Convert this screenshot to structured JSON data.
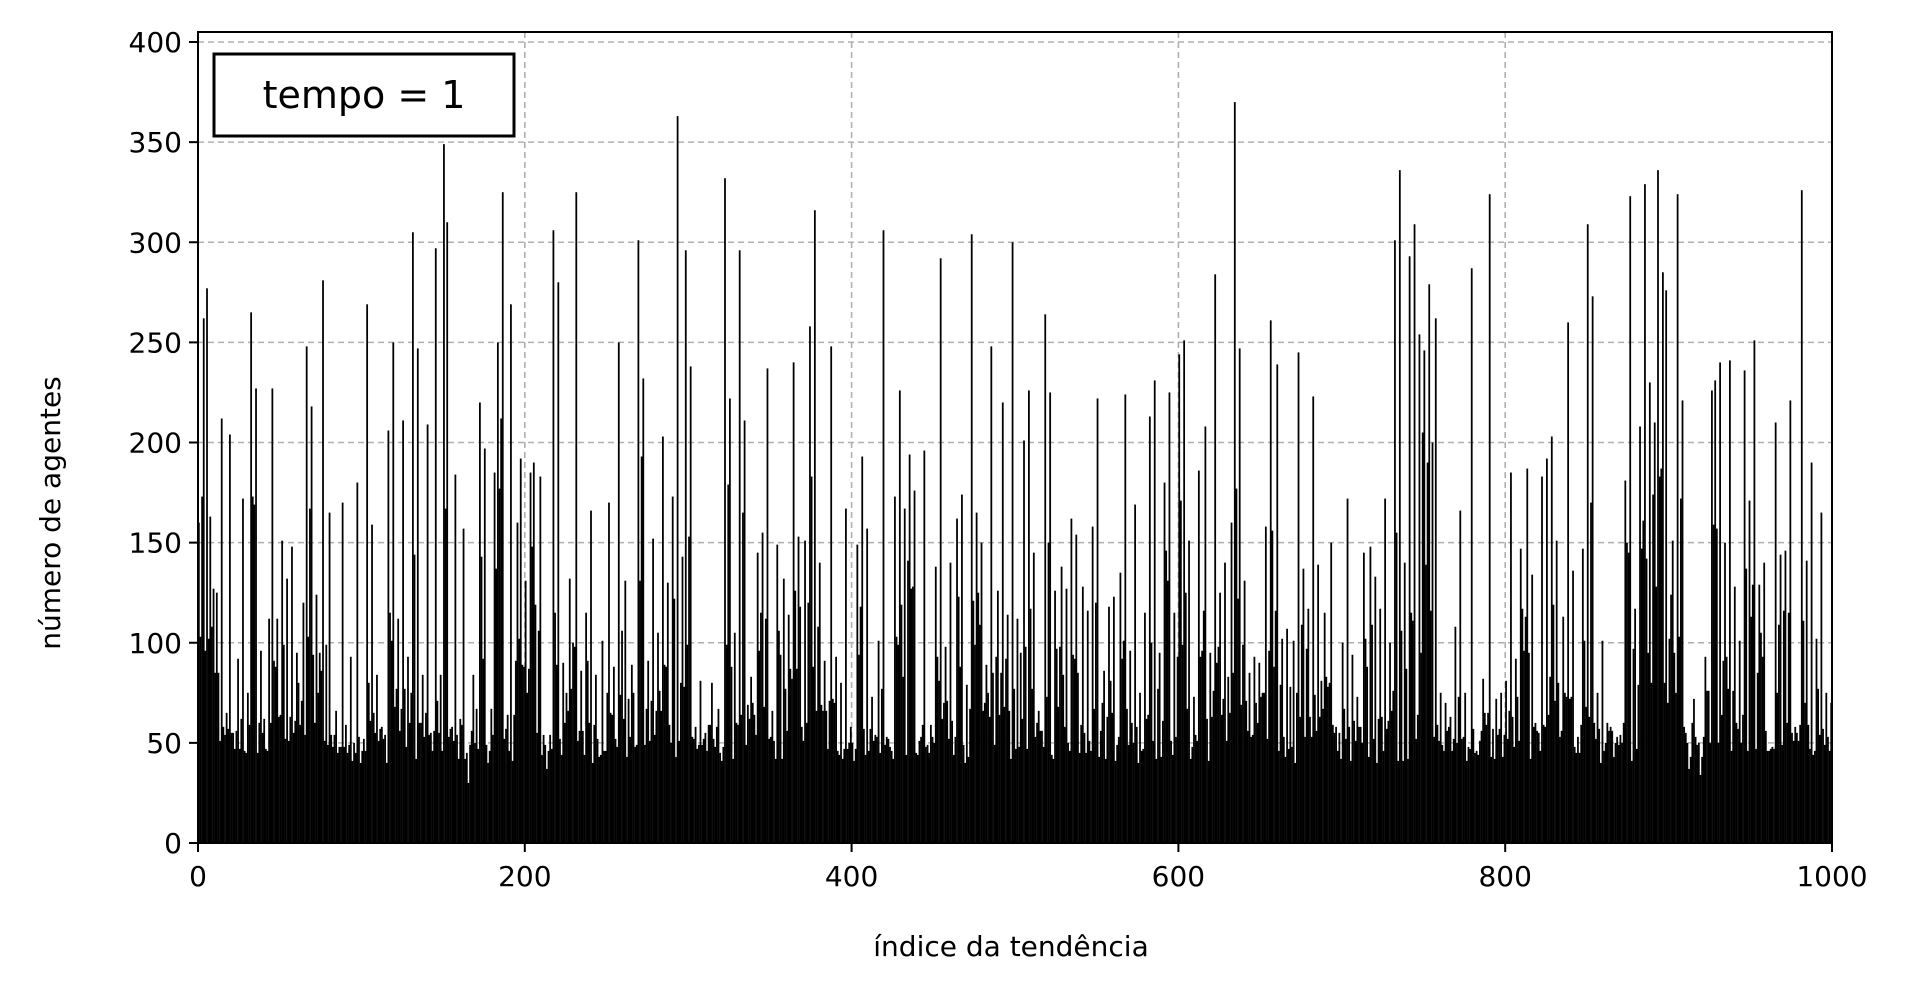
{
  "chart_data": {
    "type": "bar",
    "title": "",
    "xlabel": "índice da tendência",
    "ylabel": "número de agentes",
    "annotation": "tempo = 1",
    "legend_position": "top-left",
    "grid": true,
    "bar_color": "#000000",
    "grid_color": "#b0b0b0",
    "xlim": [
      0,
      1000
    ],
    "ylim": [
      0,
      405
    ],
    "xticks": [
      0,
      200,
      400,
      600,
      800,
      1000
    ],
    "yticks": [
      0,
      50,
      100,
      150,
      200,
      250,
      300,
      350,
      400
    ],
    "n_bars": 1000,
    "x_start": 0,
    "peaks": [
      [
        0,
        160
      ],
      [
        2,
        173
      ],
      [
        3,
        262
      ],
      [
        5,
        277
      ],
      [
        7,
        163
      ],
      [
        9,
        127
      ],
      [
        11,
        125
      ],
      [
        14,
        212
      ],
      [
        17,
        65
      ],
      [
        19,
        204
      ],
      [
        21,
        55
      ],
      [
        24,
        92
      ],
      [
        27,
        172
      ],
      [
        30,
        75
      ],
      [
        32,
        265
      ],
      [
        35,
        227
      ],
      [
        38,
        96
      ],
      [
        40,
        62
      ],
      [
        43,
        112
      ],
      [
        45,
        227
      ],
      [
        48,
        112
      ],
      [
        51,
        151
      ],
      [
        54,
        132
      ],
      [
        57,
        148
      ],
      [
        60,
        95
      ],
      [
        64,
        120
      ],
      [
        66,
        248
      ],
      [
        69,
        218
      ],
      [
        72,
        124
      ],
      [
        76,
        281
      ],
      [
        80,
        165
      ],
      [
        84,
        66
      ],
      [
        88,
        170
      ],
      [
        91,
        45
      ],
      [
        93,
        93
      ],
      [
        97,
        180
      ],
      [
        101,
        52
      ],
      [
        103,
        269
      ],
      [
        106,
        159
      ],
      [
        109,
        84
      ],
      [
        112,
        58
      ],
      [
        116,
        206
      ],
      [
        119,
        250
      ],
      [
        122,
        112
      ],
      [
        125,
        211
      ],
      [
        128,
        93
      ],
      [
        131,
        305
      ],
      [
        134,
        247
      ],
      [
        137,
        84
      ],
      [
        140,
        209
      ],
      [
        142,
        55
      ],
      [
        145,
        297
      ],
      [
        148,
        84
      ],
      [
        150,
        349
      ],
      [
        152,
        310
      ],
      [
        155,
        58
      ],
      [
        157,
        184
      ],
      [
        160,
        62
      ],
      [
        162,
        157
      ],
      [
        165,
        30
      ],
      [
        168,
        84
      ],
      [
        172,
        220
      ],
      [
        175,
        197
      ],
      [
        179,
        67
      ],
      [
        181,
        185
      ],
      [
        183,
        250
      ],
      [
        186,
        325
      ],
      [
        189,
        64
      ],
      [
        191,
        269
      ],
      [
        195,
        160
      ],
      [
        197,
        192
      ],
      [
        200,
        131
      ],
      [
        203,
        185
      ],
      [
        205,
        190
      ],
      [
        209,
        183
      ],
      [
        213,
        37
      ],
      [
        217,
        306
      ],
      [
        220,
        280
      ],
      [
        223,
        90
      ],
      [
        227,
        132
      ],
      [
        231,
        325
      ],
      [
        234,
        86
      ],
      [
        237,
        115
      ],
      [
        240,
        166
      ],
      [
        243,
        84
      ],
      [
        247,
        101
      ],
      [
        251,
        170
      ],
      [
        254,
        88
      ],
      [
        257,
        250
      ],
      [
        261,
        131
      ],
      [
        265,
        89
      ],
      [
        269,
        301
      ],
      [
        272,
        232
      ],
      [
        275,
        91
      ],
      [
        278,
        152
      ],
      [
        281,
        105
      ],
      [
        284,
        203
      ],
      [
        287,
        130
      ],
      [
        290,
        173
      ],
      [
        293,
        363
      ],
      [
        296,
        143
      ],
      [
        298,
        296
      ],
      [
        301,
        238
      ],
      [
        304,
        58
      ],
      [
        307,
        81
      ],
      [
        310,
        55
      ],
      [
        314,
        80
      ],
      [
        318,
        67
      ],
      [
        322,
        332
      ],
      [
        325,
        222
      ],
      [
        328,
        105
      ],
      [
        331,
        296
      ],
      [
        334,
        211
      ],
      [
        338,
        83
      ],
      [
        342,
        145
      ],
      [
        345,
        155
      ],
      [
        348,
        237
      ],
      [
        351,
        66
      ],
      [
        354,
        149
      ],
      [
        358,
        132
      ],
      [
        361,
        114
      ],
      [
        364,
        240
      ],
      [
        367,
        153
      ],
      [
        371,
        151
      ],
      [
        374,
        258
      ],
      [
        377,
        316
      ],
      [
        380,
        140
      ],
      [
        383,
        91
      ],
      [
        387,
        248
      ],
      [
        390,
        93
      ],
      [
        393,
        80
      ],
      [
        396,
        167
      ],
      [
        399,
        58
      ],
      [
        403,
        149
      ],
      [
        406,
        193
      ],
      [
        409,
        157
      ],
      [
        412,
        73
      ],
      [
        416,
        101
      ],
      [
        419,
        306
      ],
      [
        423,
        48
      ],
      [
        426,
        173
      ],
      [
        429,
        226
      ],
      [
        432,
        167
      ],
      [
        435,
        194
      ],
      [
        438,
        176
      ],
      [
        441,
        51
      ],
      [
        444,
        196
      ],
      [
        447,
        45
      ],
      [
        451,
        138
      ],
      [
        454,
        292
      ],
      [
        457,
        98
      ],
      [
        460,
        140
      ],
      [
        464,
        162
      ],
      [
        467,
        174
      ],
      [
        470,
        79
      ],
      [
        473,
        304
      ],
      [
        476,
        165
      ],
      [
        479,
        150
      ],
      [
        482,
        89
      ],
      [
        485,
        248
      ],
      [
        489,
        126
      ],
      [
        492,
        220
      ],
      [
        495,
        114
      ],
      [
        498,
        300
      ],
      [
        501,
        112
      ],
      [
        505,
        201
      ],
      [
        508,
        226
      ],
      [
        511,
        145
      ],
      [
        514,
        66
      ],
      [
        518,
        264
      ],
      [
        521,
        225
      ],
      [
        524,
        126
      ],
      [
        528,
        138
      ],
      [
        531,
        127
      ],
      [
        534,
        162
      ],
      [
        537,
        154
      ],
      [
        541,
        128
      ],
      [
        544,
        116
      ],
      [
        547,
        158
      ],
      [
        550,
        222
      ],
      [
        554,
        86
      ],
      [
        557,
        118
      ],
      [
        560,
        123
      ],
      [
        564,
        135
      ],
      [
        567,
        224
      ],
      [
        570,
        96
      ],
      [
        573,
        169
      ],
      [
        576,
        75
      ],
      [
        579,
        115
      ],
      [
        582,
        213
      ],
      [
        585,
        231
      ],
      [
        588,
        95
      ],
      [
        591,
        180
      ],
      [
        594,
        225
      ],
      [
        597,
        115
      ],
      [
        600,
        244
      ],
      [
        603,
        251
      ],
      [
        606,
        151
      ],
      [
        609,
        73
      ],
      [
        612,
        186
      ],
      [
        616,
        208
      ],
      [
        619,
        95
      ],
      [
        622,
        284
      ],
      [
        625,
        125
      ],
      [
        628,
        140
      ],
      [
        632,
        160
      ],
      [
        634,
        370
      ],
      [
        637,
        247
      ],
      [
        640,
        131
      ],
      [
        643,
        85
      ],
      [
        646,
        93
      ],
      [
        649,
        90
      ],
      [
        653,
        158
      ],
      [
        656,
        261
      ],
      [
        660,
        239
      ],
      [
        663,
        102
      ],
      [
        666,
        107
      ],
      [
        670,
        101
      ],
      [
        673,
        245
      ],
      [
        676,
        137
      ],
      [
        679,
        117
      ],
      [
        682,
        223
      ],
      [
        685,
        139
      ],
      [
        689,
        115
      ],
      [
        693,
        150
      ],
      [
        696,
        58
      ],
      [
        700,
        100
      ],
      [
        703,
        172
      ],
      [
        706,
        94
      ],
      [
        709,
        73
      ],
      [
        713,
        145
      ],
      [
        717,
        148
      ],
      [
        720,
        133
      ],
      [
        723,
        117
      ],
      [
        726,
        172
      ],
      [
        729,
        100
      ],
      [
        732,
        301
      ],
      [
        735,
        336
      ],
      [
        738,
        140
      ],
      [
        741,
        293
      ],
      [
        744,
        309
      ],
      [
        747,
        254
      ],
      [
        750,
        246
      ],
      [
        753,
        279
      ],
      [
        757,
        262
      ],
      [
        760,
        75
      ],
      [
        763,
        70
      ],
      [
        766,
        63
      ],
      [
        769,
        108
      ],
      [
        772,
        166
      ],
      [
        775,
        75
      ],
      [
        779,
        287
      ],
      [
        782,
        46
      ],
      [
        786,
        82
      ],
      [
        790,
        324
      ],
      [
        794,
        72
      ],
      [
        797,
        75
      ],
      [
        800,
        81
      ],
      [
        803,
        185
      ],
      [
        806,
        92
      ],
      [
        809,
        147
      ],
      [
        813,
        187
      ],
      [
        816,
        134
      ],
      [
        819,
        56
      ],
      [
        822,
        183
      ],
      [
        825,
        192
      ],
      [
        828,
        203
      ],
      [
        831,
        151
      ],
      [
        835,
        113
      ],
      [
        838,
        260
      ],
      [
        841,
        136
      ],
      [
        844,
        53
      ],
      [
        847,
        147
      ],
      [
        850,
        309
      ],
      [
        853,
        273
      ],
      [
        856,
        75
      ],
      [
        859,
        101
      ],
      [
        863,
        56
      ],
      [
        867,
        50
      ],
      [
        870,
        54
      ],
      [
        873,
        181
      ],
      [
        876,
        323
      ],
      [
        879,
        117
      ],
      [
        882,
        208
      ],
      [
        885,
        329
      ],
      [
        888,
        230
      ],
      [
        891,
        210
      ],
      [
        893,
        336
      ],
      [
        896,
        285
      ],
      [
        898,
        276
      ],
      [
        902,
        151
      ],
      [
        905,
        324
      ],
      [
        908,
        221
      ],
      [
        912,
        37
      ],
      [
        915,
        72
      ],
      [
        919,
        34
      ],
      [
        922,
        93
      ],
      [
        926,
        226
      ],
      [
        928,
        231
      ],
      [
        931,
        240
      ],
      [
        934,
        150
      ],
      [
        937,
        241
      ],
      [
        940,
        128
      ],
      [
        943,
        101
      ],
      [
        946,
        236
      ],
      [
        949,
        171
      ],
      [
        952,
        251
      ],
      [
        955,
        129
      ],
      [
        958,
        140
      ],
      [
        961,
        46
      ],
      [
        965,
        210
      ],
      [
        968,
        144
      ],
      [
        971,
        146
      ],
      [
        974,
        221
      ],
      [
        977,
        58
      ],
      [
        981,
        326
      ],
      [
        984,
        141
      ],
      [
        987,
        190
      ],
      [
        990,
        102
      ],
      [
        993,
        165
      ],
      [
        996,
        75
      ],
      [
        999,
        70
      ]
    ]
  }
}
